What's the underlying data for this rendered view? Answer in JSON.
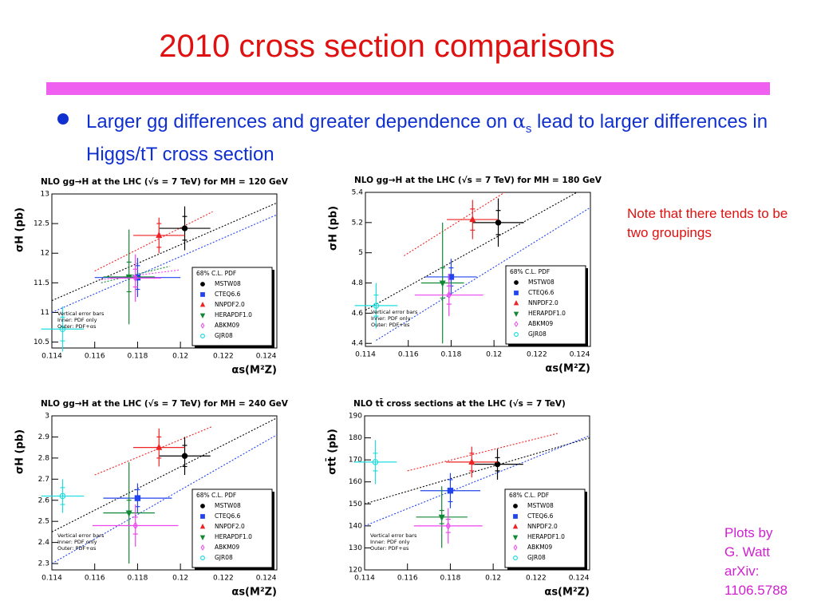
{
  "title": "2010 cross section comparisons",
  "bullet": {
    "parts": [
      "Larger gg differences and greater dependence on ",
      "α",
      "s",
      " lead to larger differences in Higgs/tT cross section"
    ]
  },
  "note": "Note that there tends to be two groupings",
  "credit": [
    "Plots by",
    "G. Watt",
    "arXiv:",
    "1106.5788"
  ],
  "chart_data": [
    {
      "type": "scatter",
      "title": "NLO gg→H at the LHC (√s = 7 TeV) for MH = 120 GeV",
      "xlabel": "αs(M²Z)",
      "ylabel": "σH (pb)",
      "xlim": [
        0.114,
        0.1245
      ],
      "xticks": [
        0.114,
        0.116,
        0.118,
        0.12,
        0.122,
        0.124
      ],
      "ylim": [
        10.4,
        13
      ],
      "yticks": [
        10.5,
        11,
        11.5,
        12,
        12.5,
        13
      ],
      "legend_title": "68% C.L. PDF",
      "notes": [
        "Vertical error bars",
        "Inner: PDF only",
        "Outer: PDF+αs"
      ],
      "series": [
        {
          "name": "MSTW08",
          "color": "#000000",
          "marker": "circle",
          "x": [
            0.1202
          ],
          "values": [
            12.42
          ],
          "errors": [
            0.37
          ],
          "inner_errors": [
            0.2
          ],
          "x_errors": [
            0.0012
          ]
        },
        {
          "name": "CTEQ6.6",
          "color": "#2244ee",
          "marker": "square",
          "x": [
            0.118
          ],
          "values": [
            11.59
          ],
          "errors": [
            0.33
          ],
          "inner_errors": [
            0.2
          ],
          "x_errors": [
            0.002
          ]
        },
        {
          "name": "NNPDF2.0",
          "color": "#ee2222",
          "marker": "triangle",
          "x": [
            0.119
          ],
          "values": [
            12.3
          ],
          "errors": [
            0.3
          ],
          "inner_errors": [
            0.2
          ],
          "x_errors": [
            0.0012
          ]
        },
        {
          "name": "HERAPDF1.0",
          "color": "#118833",
          "marker": "triangle-down",
          "x": [
            0.1176
          ],
          "values": [
            11.6
          ],
          "errors": [
            0.8
          ],
          "inner_errors": [
            0.25
          ],
          "x_errors": [
            0.0012
          ]
        },
        {
          "name": "ABKM09",
          "color": "#ee44ee",
          "marker": "diamond",
          "x": [
            0.1179
          ],
          "values": [
            11.58
          ],
          "errors": [
            0.4
          ],
          "inner_errors": [
            0.15
          ],
          "x_errors": [
            0.0012
          ]
        },
        {
          "name": "GJR08",
          "color": "#22dddd",
          "marker": "open-circle",
          "x": [
            0.1145
          ],
          "values": [
            10.72
          ],
          "errors": [
            0.38
          ],
          "inner_errors": [
            0.2
          ],
          "x_errors": [
            0.001
          ]
        }
      ],
      "curves": [
        {
          "color": "#000000",
          "x": [
            0.114,
            0.1245
          ],
          "y": [
            11.2,
            12.85
          ]
        },
        {
          "color": "#ee2222",
          "x": [
            0.116,
            0.1215
          ],
          "y": [
            11.7,
            12.7
          ]
        },
        {
          "color": "#2244ee",
          "x": [
            0.114,
            0.1245
          ],
          "y": [
            11.0,
            12.65
          ]
        },
        {
          "color": "#118833",
          "x": [
            0.1163,
            0.1195
          ],
          "y": [
            11.5,
            11.78
          ]
        },
        {
          "color": "#ee44ee",
          "x": [
            0.1163,
            0.12
          ],
          "y": [
            11.55,
            11.72
          ]
        }
      ]
    },
    {
      "type": "scatter",
      "title": "NLO gg→H at the LHC (√s = 7 TeV) for MH = 180 GeV",
      "xlabel": "αs(M²Z)",
      "ylabel": "σH (pb)",
      "xlim": [
        0.114,
        0.1245
      ],
      "xticks": [
        0.114,
        0.116,
        0.118,
        0.12,
        0.122,
        0.124
      ],
      "ylim": [
        4.38,
        5.4
      ],
      "yticks": [
        4.4,
        4.6,
        4.8,
        5,
        5.2,
        5.4
      ],
      "legend_title": "68% C.L. PDF",
      "notes": [
        "Vertical error bars",
        "Inner: PDF only",
        "Outer: PDF+αs"
      ],
      "series": [
        {
          "name": "MSTW08",
          "color": "#000000",
          "marker": "circle",
          "x": [
            0.1202
          ],
          "values": [
            5.2
          ],
          "errors": [
            0.16
          ],
          "inner_errors": [
            0.08
          ],
          "x_errors": [
            0.0012
          ]
        },
        {
          "name": "CTEQ6.6",
          "color": "#2244ee",
          "marker": "square",
          "x": [
            0.118
          ],
          "values": [
            4.84
          ],
          "errors": [
            0.12
          ],
          "inner_errors": [
            0.06
          ],
          "x_errors": [
            0.0012
          ]
        },
        {
          "name": "NNPDF2.0",
          "color": "#ee2222",
          "marker": "triangle",
          "x": [
            0.119
          ],
          "values": [
            5.22
          ],
          "errors": [
            0.13
          ],
          "inner_errors": [
            0.07
          ],
          "x_errors": [
            0.0012
          ]
        },
        {
          "name": "HERAPDF1.0",
          "color": "#118833",
          "marker": "triangle-down",
          "x": [
            0.1176
          ],
          "values": [
            4.8
          ],
          "errors": [
            0.4
          ],
          "inner_errors": [
            0.1
          ],
          "x_errors": [
            0.001
          ]
        },
        {
          "name": "ABKM09",
          "color": "#ee44ee",
          "marker": "diamond",
          "x": [
            0.1179
          ],
          "values": [
            4.72
          ],
          "errors": [
            0.14
          ],
          "inner_errors": [
            0.06
          ],
          "x_errors": [
            0.0016
          ]
        },
        {
          "name": "GJR08",
          "color": "#22dddd",
          "marker": "open-circle",
          "x": [
            0.1145
          ],
          "values": [
            4.65
          ],
          "errors": [
            0.15
          ],
          "inner_errors": [
            0.07
          ],
          "x_errors": [
            0.001
          ]
        }
      ],
      "curves": [
        {
          "color": "#000000",
          "x": [
            0.114,
            0.1245
          ],
          "y": [
            4.62,
            5.45
          ]
        },
        {
          "color": "#ee2222",
          "x": [
            0.1158,
            0.1205
          ],
          "y": [
            4.98,
            5.4
          ]
        },
        {
          "color": "#2244ee",
          "x": [
            0.1145,
            0.1245
          ],
          "y": [
            4.42,
            5.3
          ]
        }
      ]
    },
    {
      "type": "scatter",
      "title": "NLO gg→H at the LHC (√s = 7 TeV) for MH = 240 GeV",
      "xlabel": "αs(M²Z)",
      "ylabel": "σH (pb)",
      "xlim": [
        0.114,
        0.1245
      ],
      "xticks": [
        0.114,
        0.116,
        0.118,
        0.12,
        0.122,
        0.124
      ],
      "ylim": [
        2.27,
        3
      ],
      "yticks": [
        2.3,
        2.4,
        2.5,
        2.6,
        2.7,
        2.8,
        2.9,
        3
      ],
      "legend_title": "68% C.L. PDF",
      "notes": [
        "Vertical error bars",
        "Inner: PDF only",
        "Outer: PDF+αs"
      ],
      "series": [
        {
          "name": "MSTW08",
          "color": "#000000",
          "marker": "circle",
          "x": [
            0.1202
          ],
          "values": [
            2.81
          ],
          "errors": [
            0.09
          ],
          "inner_errors": [
            0.05
          ],
          "x_errors": [
            0.0012
          ]
        },
        {
          "name": "CTEQ6.6",
          "color": "#2244ee",
          "marker": "square",
          "x": [
            0.118
          ],
          "values": [
            2.61
          ],
          "errors": [
            0.07
          ],
          "inner_errors": [
            0.04
          ],
          "x_errors": [
            0.0016
          ]
        },
        {
          "name": "NNPDF2.0",
          "color": "#ee2222",
          "marker": "triangle",
          "x": [
            0.119
          ],
          "values": [
            2.85
          ],
          "errors": [
            0.09
          ],
          "inner_errors": [
            0.05
          ],
          "x_errors": [
            0.0012
          ]
        },
        {
          "name": "HERAPDF1.0",
          "color": "#118833",
          "marker": "triangle-down",
          "x": [
            0.1176
          ],
          "values": [
            2.54
          ],
          "errors": [
            0.24
          ],
          "inner_errors": [
            0.06
          ],
          "x_errors": [
            0.0012
          ]
        },
        {
          "name": "ABKM09",
          "color": "#ee44ee",
          "marker": "diamond",
          "x": [
            0.1179
          ],
          "values": [
            2.48
          ],
          "errors": [
            0.1
          ],
          "inner_errors": [
            0.04
          ],
          "x_errors": [
            0.002
          ]
        },
        {
          "name": "GJR08",
          "color": "#22dddd",
          "marker": "open-circle",
          "x": [
            0.1145
          ],
          "values": [
            2.62
          ],
          "errors": [
            0.08
          ],
          "inner_errors": [
            0.04
          ],
          "x_errors": [
            0.001
          ]
        }
      ],
      "curves": [
        {
          "color": "#000000",
          "x": [
            0.114,
            0.1245
          ],
          "y": [
            2.45,
            2.99
          ]
        },
        {
          "color": "#ee2222",
          "x": [
            0.116,
            0.1215
          ],
          "y": [
            2.72,
            2.95
          ]
        },
        {
          "color": "#2244ee",
          "x": [
            0.114,
            0.1245
          ],
          "y": [
            2.3,
            2.91
          ]
        }
      ]
    },
    {
      "type": "scatter",
      "title": "NLO tt̄ cross sections at the LHC (√s = 7 TeV)",
      "xlabel": "αs(M²Z)",
      "ylabel": "σtt̄ (pb)",
      "xlim": [
        0.114,
        0.1245
      ],
      "xticks": [
        0.114,
        0.116,
        0.118,
        0.12,
        0.122,
        0.124
      ],
      "ylim": [
        120,
        190
      ],
      "yticks": [
        120,
        130,
        140,
        150,
        160,
        170,
        180,
        190
      ],
      "legend_title": "68% C.L. PDF",
      "notes": [
        "Vertical error bars",
        "Inner: PDF only",
        "Outer: PDF+αs"
      ],
      "series": [
        {
          "name": "MSTW08",
          "color": "#000000",
          "marker": "circle",
          "x": [
            0.1202
          ],
          "values": [
            168
          ],
          "errors": [
            7
          ],
          "inner_errors": [
            3
          ],
          "x_errors": [
            0.0012
          ]
        },
        {
          "name": "CTEQ6.6",
          "color": "#2244ee",
          "marker": "square",
          "x": [
            0.118
          ],
          "values": [
            156
          ],
          "errors": [
            8
          ],
          "inner_errors": [
            5
          ],
          "x_errors": [
            0.0014
          ]
        },
        {
          "name": "NNPDF2.0",
          "color": "#ee2222",
          "marker": "triangle",
          "x": [
            0.119
          ],
          "values": [
            169
          ],
          "errors": [
            7
          ],
          "inner_errors": [
            4
          ],
          "x_errors": [
            0.0012
          ]
        },
        {
          "name": "HERAPDF1.0",
          "color": "#118833",
          "marker": "triangle-down",
          "x": [
            0.1176
          ],
          "values": [
            144
          ],
          "errors": [
            14
          ],
          "inner_errors": [
            3
          ],
          "x_errors": [
            0.0012
          ]
        },
        {
          "name": "ABKM09",
          "color": "#ee44ee",
          "marker": "diamond",
          "x": [
            0.1179
          ],
          "values": [
            140
          ],
          "errors": [
            8
          ],
          "inner_errors": [
            3
          ],
          "x_errors": [
            0.0016
          ]
        },
        {
          "name": "GJR08",
          "color": "#22dddd",
          "marker": "open-circle",
          "x": [
            0.1145
          ],
          "values": [
            169
          ],
          "errors": [
            10
          ],
          "inner_errors": [
            4
          ],
          "x_errors": [
            0.001
          ]
        }
      ],
      "curves": [
        {
          "color": "#000000",
          "x": [
            0.114,
            0.1245
          ],
          "y": [
            150,
            180
          ]
        },
        {
          "color": "#ee2222",
          "x": [
            0.116,
            0.123
          ],
          "y": [
            165,
            182
          ]
        },
        {
          "color": "#2244ee",
          "x": [
            0.114,
            0.1245
          ],
          "y": [
            140,
            181
          ]
        }
      ]
    }
  ]
}
